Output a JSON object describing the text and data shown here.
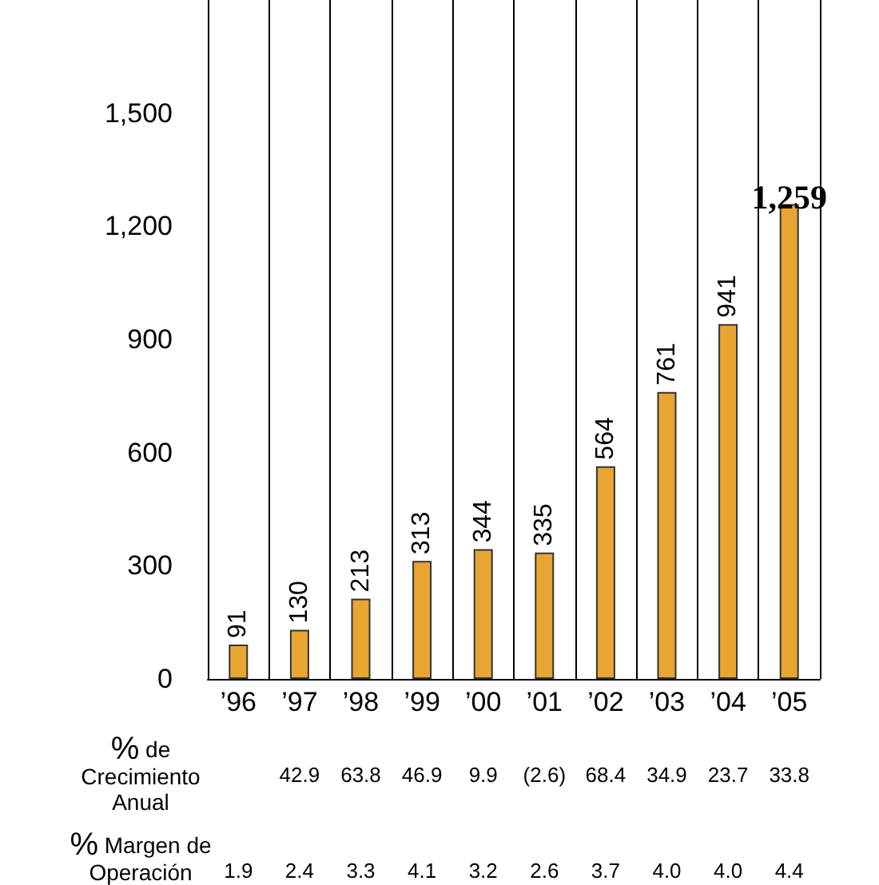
{
  "chart_data": {
    "type": "bar",
    "categories": [
      "’96",
      "’97",
      "’98",
      "’99",
      "’00",
      "’01",
      "’02",
      "’03",
      "’04",
      "’05"
    ],
    "values": [
      91,
      130,
      213,
      313,
      344,
      335,
      564,
      761,
      941,
      1259
    ],
    "value_labels": [
      "91",
      "130",
      "213",
      "313",
      "344",
      "335",
      "564",
      "761",
      "941",
      "1,259"
    ],
    "color": "#e8a532",
    "ylim": [
      0,
      1800
    ],
    "yticks": [
      0,
      300,
      600,
      900,
      {
        "value": 1200,
        "label": "1,200"
      },
      {
        "value": 1500,
        "label": "1,500"
      }
    ],
    "grid": "x",
    "annotations": [
      "% de\nCrecimiento\nAnual",
      "42.9",
      "63.8",
      "46.9",
      "9.9",
      "(2.6)",
      "68.4",
      "34.9",
      "23.7",
      "33.8",
      "% Margen de\nOperación",
      "1.9",
      "2.4",
      "3.3",
      "4.1",
      "3.2",
      "2.6",
      "3.7",
      "4.0",
      "4.0",
      "4.4"
    ]
  }
}
